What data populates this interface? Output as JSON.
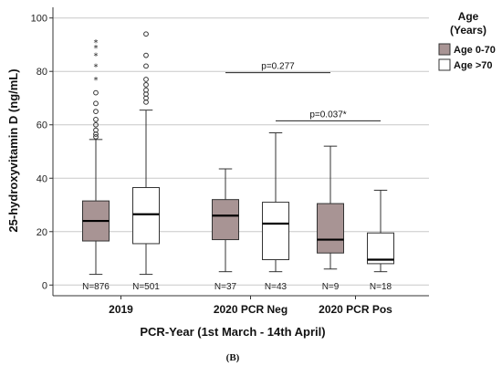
{
  "chart_data": {
    "type": "box",
    "ylabel": "25-hydroxyvitamin D (ng/mL)",
    "xlabel": "PCR-Year (1st March - 14th April)",
    "panel_label": "(B)",
    "ylim": [
      -4,
      104
    ],
    "yticks": [
      0,
      20,
      40,
      60,
      80,
      100
    ],
    "grid": "horizontal",
    "legend": {
      "title_lines": [
        "Age",
        "(Years)"
      ],
      "placement": "top-right",
      "entries": [
        {
          "label": "Age 0-70",
          "color": "#a89494"
        },
        {
          "label": "Age >70",
          "color": "#ffffff"
        }
      ]
    },
    "categories": [
      "2019",
      "2020 PCR Neg",
      "2020 PCR Pos"
    ],
    "boxes": [
      {
        "category": 0,
        "series": 0,
        "whisker_low": 4,
        "q1": 16.5,
        "median": 24,
        "q3": 31.5,
        "whisker_high": 54.5,
        "n_label": "N=876",
        "outliers": [
          {
            "v": 55.5,
            "m": "o"
          },
          {
            "v": 56.5,
            "m": "o"
          },
          {
            "v": 58,
            "m": "o"
          },
          {
            "v": 60,
            "m": "o"
          },
          {
            "v": 62,
            "m": "o"
          },
          {
            "v": 65,
            "m": "o"
          },
          {
            "v": 68,
            "m": "o"
          },
          {
            "v": 72,
            "m": "o"
          },
          {
            "v": 77,
            "m": "*"
          },
          {
            "v": 82,
            "m": "*"
          },
          {
            "v": 86,
            "m": "*"
          },
          {
            "v": 89,
            "m": "*"
          },
          {
            "v": 91,
            "m": "*"
          }
        ]
      },
      {
        "category": 0,
        "series": 1,
        "whisker_low": 4,
        "q1": 15.5,
        "median": 26.5,
        "q3": 36.5,
        "whisker_high": 65.5,
        "n_label": "N=501",
        "outliers": [
          {
            "v": 68.5,
            "m": "o"
          },
          {
            "v": 70,
            "m": "o"
          },
          {
            "v": 71.5,
            "m": "o"
          },
          {
            "v": 73,
            "m": "o"
          },
          {
            "v": 75,
            "m": "o"
          },
          {
            "v": 77,
            "m": "o"
          },
          {
            "v": 82,
            "m": "o"
          },
          {
            "v": 86,
            "m": "o"
          },
          {
            "v": 94,
            "m": "o"
          }
        ]
      },
      {
        "category": 1,
        "series": 0,
        "whisker_low": 5,
        "q1": 17,
        "median": 26,
        "q3": 32,
        "whisker_high": 43.5,
        "n_label": "N=37",
        "outliers": []
      },
      {
        "category": 1,
        "series": 1,
        "whisker_low": 5,
        "q1": 9.5,
        "median": 23,
        "q3": 31,
        "whisker_high": 57,
        "n_label": "N=43",
        "outliers": []
      },
      {
        "category": 2,
        "series": 0,
        "whisker_low": 6,
        "q1": 12,
        "median": 17,
        "q3": 30.5,
        "whisker_high": 52,
        "n_label": "N=9",
        "outliers": []
      },
      {
        "category": 2,
        "series": 1,
        "whisker_low": 5,
        "q1": 8,
        "median": 9.5,
        "q3": 19.5,
        "whisker_high": 35.5,
        "n_label": "N=18",
        "outliers": []
      }
    ],
    "annotations": [
      {
        "text": "p=0.277",
        "y": 79.5,
        "from": [
          1,
          0
        ],
        "to": [
          2,
          0
        ]
      },
      {
        "text": "p=0.037*",
        "y": 61.5,
        "from": [
          1,
          1
        ],
        "to": [
          2,
          1
        ]
      }
    ]
  }
}
